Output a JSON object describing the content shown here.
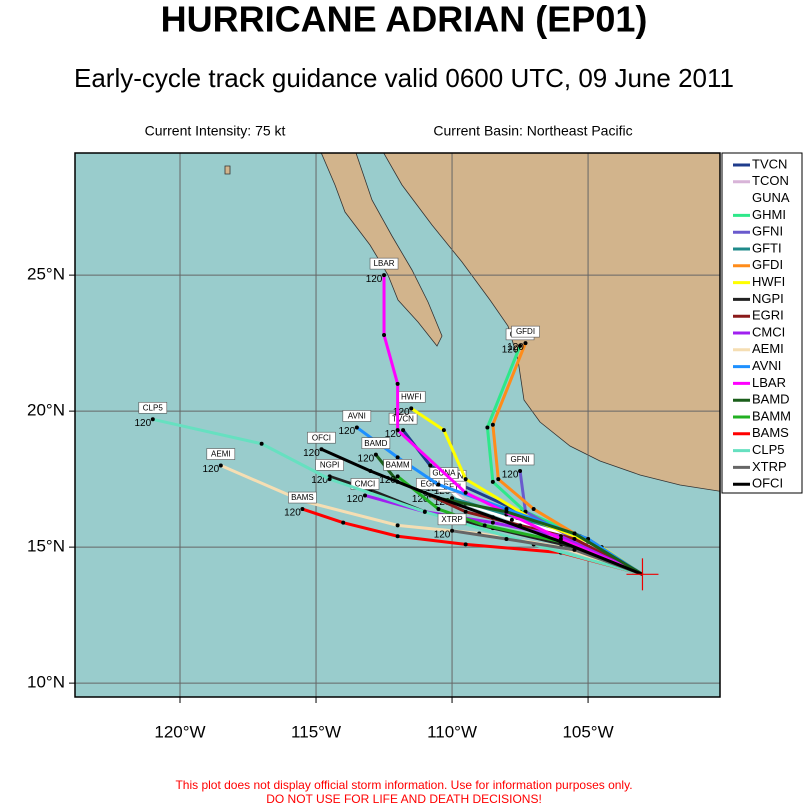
{
  "header": {
    "title": "HURRICANE ADRIAN (EP01)",
    "subtitle": "Early-cycle track guidance valid 0600 UTC, 09 June 2011",
    "intensity": "Current Intensity: 75 kt",
    "basin": "Current Basin: Northeast Pacific"
  },
  "map": {
    "xlim": [
      -123.86,
      -100.15
    ],
    "ylim": [
      9.49,
      29.49
    ],
    "xticks": [
      {
        "value": -120,
        "label": "120°W"
      },
      {
        "value": -115,
        "label": "115°W"
      },
      {
        "value": -110,
        "label": "110°W"
      },
      {
        "value": -105,
        "label": "105°W"
      }
    ],
    "yticks": [
      {
        "value": 10,
        "label": "10°N"
      },
      {
        "value": 15,
        "label": "15°N"
      },
      {
        "value": 20,
        "label": "20°N"
      },
      {
        "value": 25,
        "label": "25°N"
      }
    ],
    "grid": true,
    "current_position": {
      "lon": -103,
      "lat": 14
    },
    "tracks": [
      {
        "name": "TVCN",
        "color": "#1f3c8c",
        "end_label": "120",
        "lon": [
          -103,
          -105,
          -107.5,
          -109.7,
          -110.8,
          -111.8
        ],
        "lat": [
          14,
          15.3,
          16.3,
          17.3,
          18,
          19.3
        ]
      },
      {
        "name": "TCON",
        "color": "#d8b4d8",
        "end_label": "120",
        "lon": [
          -103,
          -105.3,
          -107.6,
          -109.4,
          -110
        ],
        "lat": [
          14,
          15.4,
          16,
          16.6,
          17.2
        ]
      },
      {
        "name": "GUNA",
        "color": "#ffffff",
        "end_label": "120",
        "lon": [
          -103,
          -105.5,
          -107.8,
          -109.5,
          -110.3
        ],
        "lat": [
          14,
          15.4,
          16,
          16.6,
          17.3
        ]
      },
      {
        "name": "GHMI",
        "color": "#2ee88a",
        "end_label": "120",
        "lon": [
          -103,
          -105.5,
          -107.3,
          -108.5,
          -108.7,
          -107.5
        ],
        "lat": [
          14,
          15.5,
          16.3,
          17.4,
          19.4,
          22.4
        ]
      },
      {
        "name": "GFNI",
        "color": "#6a5acd",
        "end_label": "120",
        "lon": [
          -103,
          -105.5,
          -107.3,
          -107.5
        ],
        "lat": [
          14,
          15.3,
          16.3,
          17.8
        ]
      },
      {
        "name": "GFTI",
        "color": "#1f8a8a",
        "end_label": "120",
        "lon": [
          -103,
          -105.5,
          -108,
          -110
        ],
        "lat": [
          14,
          15.5,
          16.2,
          16.8
        ]
      },
      {
        "name": "GFDI",
        "color": "#ff8c1a",
        "end_label": "120",
        "lon": [
          -103,
          -105,
          -107,
          -108.3,
          -108.5,
          -107.3
        ],
        "lat": [
          14,
          15.2,
          16.4,
          17.5,
          19.5,
          22.5
        ]
      },
      {
        "name": "HWFI",
        "color": "#ffff00",
        "end_label": "120",
        "lon": [
          -103,
          -104.5,
          -107,
          -109.5,
          -110.3,
          -111.5
        ],
        "lat": [
          14,
          15,
          16,
          17.5,
          19.3,
          20.1
        ]
      },
      {
        "name": "NGPI",
        "color": "#222222",
        "end_label": "120",
        "lon": [
          -103,
          -105.5,
          -108.5,
          -111,
          -113,
          -114.5
        ],
        "lat": [
          14,
          15,
          15.7,
          16.3,
          17.1,
          17.6
        ]
      },
      {
        "name": "EGRI",
        "color": "#8b1a1a",
        "end_label": "120",
        "lon": [
          -103,
          -105.5,
          -107.5,
          -109.5,
          -110.8
        ],
        "lat": [
          14,
          15.3,
          15.8,
          16.3,
          16.9
        ]
      },
      {
        "name": "CMCI",
        "color": "#a020f0",
        "end_label": "120",
        "lon": [
          -103,
          -106,
          -108.5,
          -111,
          -113.2
        ],
        "lat": [
          14,
          15.4,
          15.9,
          16.3,
          16.9
        ]
      },
      {
        "name": "AEMI",
        "color": "#f5deb3",
        "end_label": "120",
        "lon": [
          -103,
          -106,
          -109,
          -112,
          -115.5,
          -118.5
        ],
        "lat": [
          14,
          15,
          15.5,
          15.8,
          16.7,
          18
        ]
      },
      {
        "name": "AVNI",
        "color": "#1e90ff",
        "end_label": "120",
        "lon": [
          -103,
          -105,
          -108,
          -110.5,
          -112,
          -113.5
        ],
        "lat": [
          14,
          15.3,
          16.4,
          17.3,
          18.3,
          19.4
        ]
      },
      {
        "name": "LBAR",
        "color": "#ff00ff",
        "end_label": "120",
        "lon": [
          -103,
          -106,
          -109.5,
          -112,
          -112,
          -112.5,
          -112.5
        ],
        "lat": [
          14,
          15.3,
          17,
          19.3,
          21,
          22.8,
          25
        ]
      },
      {
        "name": "BAMD",
        "color": "#1a5e1a",
        "end_label": "120",
        "lon": [
          -103,
          -105.5,
          -108,
          -110.5,
          -112,
          -112.8
        ],
        "lat": [
          14,
          15.5,
          16.3,
          16.8,
          17.4,
          18.4
        ]
      },
      {
        "name": "BAMM",
        "color": "#22b022",
        "end_label": "120",
        "lon": [
          -103,
          -106,
          -108.8,
          -110.5,
          -112
        ],
        "lat": [
          14,
          15.2,
          15.8,
          16.4,
          17.6
        ]
      },
      {
        "name": "BAMS",
        "color": "#ff0000",
        "end_label": "120",
        "lon": [
          -103,
          -106,
          -109.5,
          -112,
          -114,
          -115.5
        ],
        "lat": [
          14,
          14.8,
          15.1,
          15.4,
          15.9,
          16.4
        ]
      },
      {
        "name": "CLP5",
        "color": "#66e0c0",
        "end_label": "120",
        "lon": [
          -103,
          -107,
          -111,
          -114.5,
          -117,
          -121
        ],
        "lat": [
          14,
          15.1,
          16.3,
          17.5,
          18.8,
          19.7
        ]
      },
      {
        "name": "XTRP",
        "color": "#666666",
        "end_label": "120",
        "lon": [
          -103,
          -105.5,
          -108,
          -110
        ],
        "lat": [
          14,
          14.9,
          15.3,
          15.6
        ]
      },
      {
        "name": "OFCI",
        "color": "#000000",
        "end_label": "120",
        "lon": [
          -103,
          -106,
          -108.5,
          -111,
          -113,
          -114.8
        ],
        "lat": [
          14,
          15.2,
          16.1,
          17,
          17.8,
          18.6
        ]
      }
    ]
  },
  "footer": {
    "line1": "This plot does not display official storm information. Use for information purposes only.",
    "line2": "DO NOT USE FOR LIFE AND DEATH DECISIONS!"
  }
}
